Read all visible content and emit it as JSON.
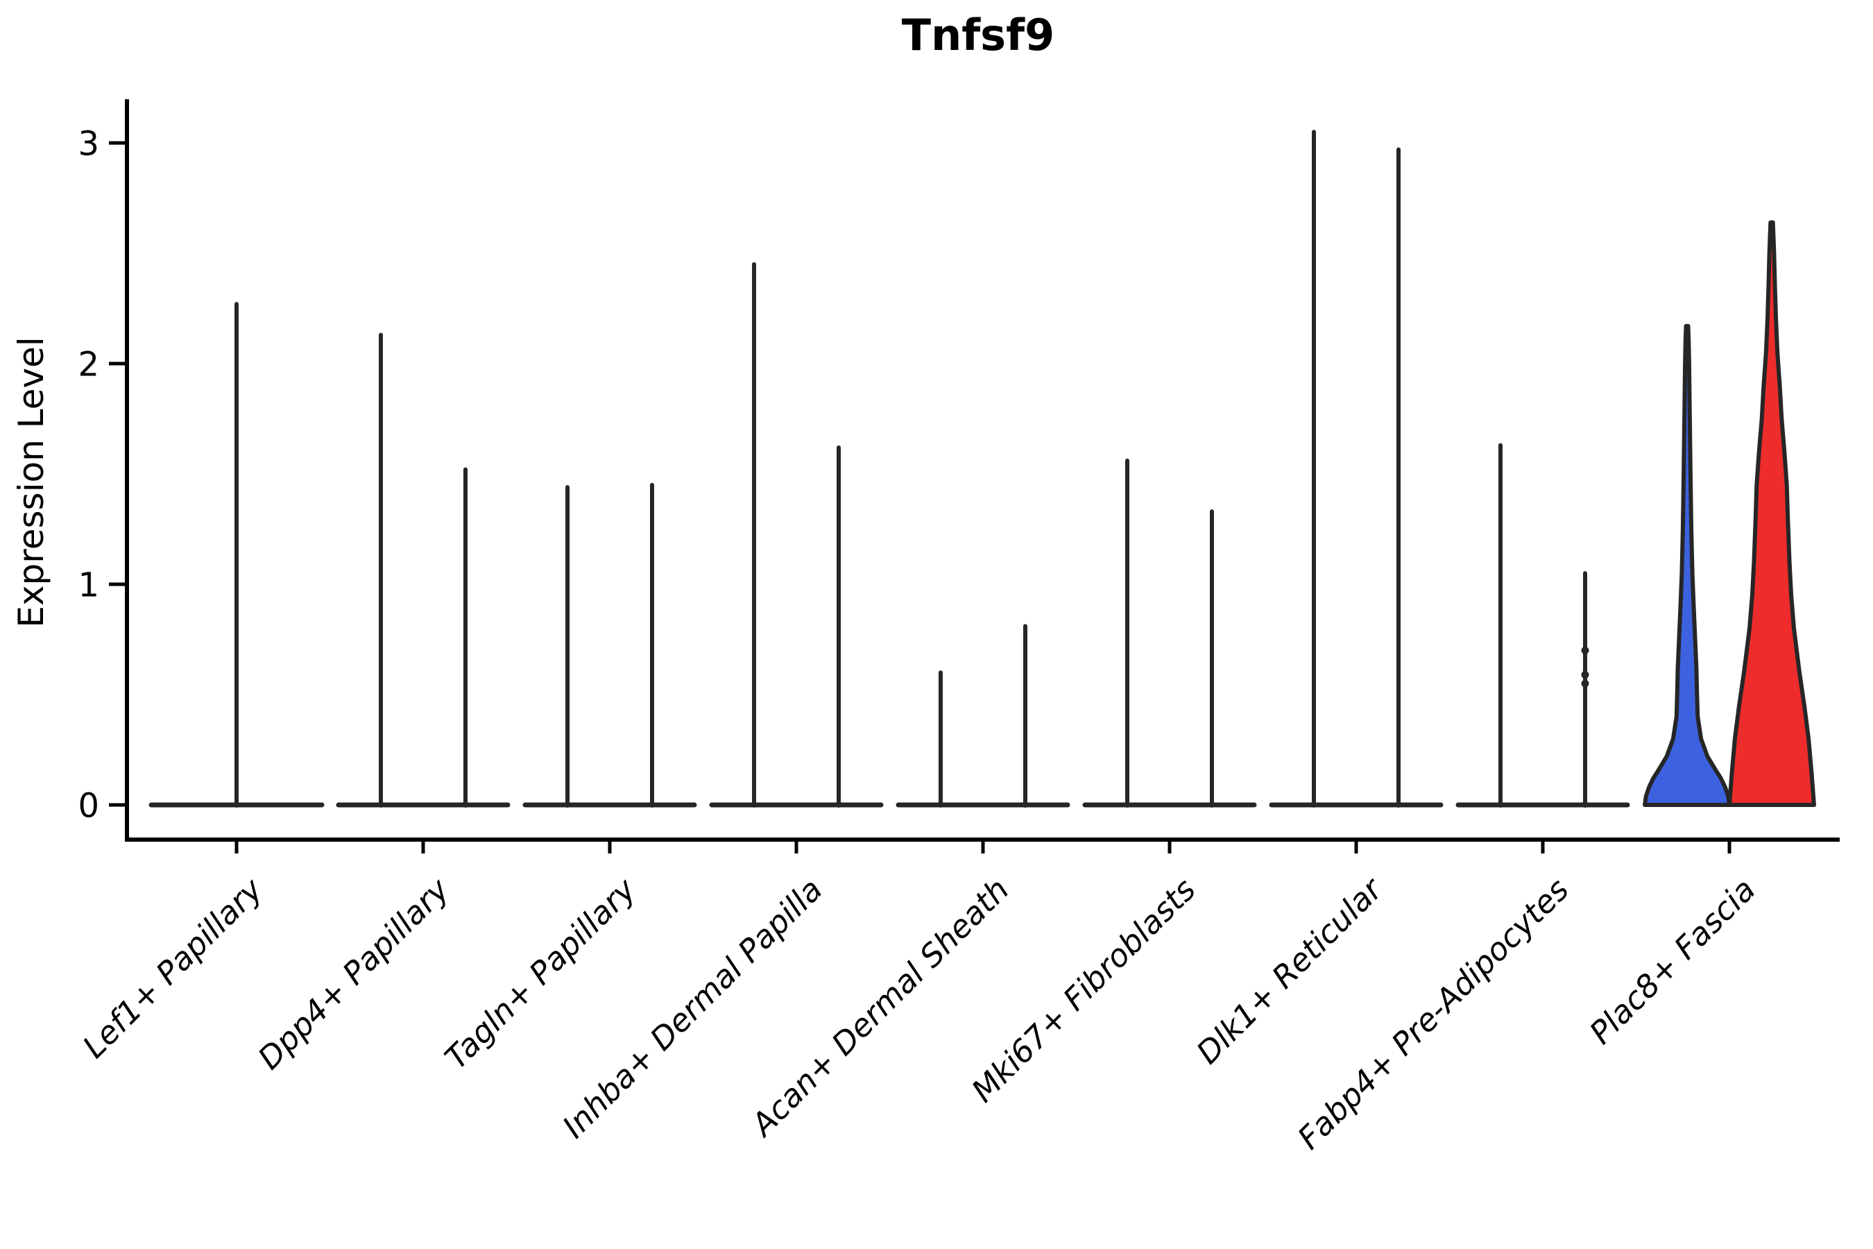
{
  "figure": {
    "background": "#ffffff"
  },
  "chart_data": {
    "type": "violin",
    "title": "Tnfsf9",
    "ylabel": "Expression Level",
    "xlabel": "",
    "yticks": [
      0,
      1,
      2,
      3
    ],
    "ylim": [
      0,
      3.2
    ],
    "grid": "off",
    "legend": "none",
    "x_tick_label_style": "italic, rotated 45deg",
    "categories": [
      "Lef1+ Papillary",
      "Dpp4+ Papillary",
      "Tagln+ Papillary",
      "Inhba+ Dermal Papilla",
      "Acan+ Dermal Sheath",
      "Mki67+ Fibroblasts",
      "Dlk1+ Reticular",
      "Fabp4+ Pre-Adipocytes",
      "Plac8+ Fascia"
    ],
    "colors": {
      "outline": "#262626",
      "axis": "#000000",
      "highlight_blue": "#3D62E0",
      "highlight_red": "#EE2C2C",
      "background": "#ffffff"
    },
    "violins": [
      {
        "category": "Lef1+ Papillary",
        "position": "center",
        "style": "spike",
        "fill": "none",
        "max_expression": 2.27
      },
      {
        "category": "Dpp4+ Papillary",
        "position": "left",
        "style": "spike",
        "fill": "none",
        "max_expression": 2.13
      },
      {
        "category": "Dpp4+ Papillary",
        "position": "right",
        "style": "spike",
        "fill": "none",
        "max_expression": 1.52
      },
      {
        "category": "Tagln+ Papillary",
        "position": "left",
        "style": "spike",
        "fill": "none",
        "max_expression": 1.44
      },
      {
        "category": "Tagln+ Papillary",
        "position": "right",
        "style": "spike",
        "fill": "none",
        "max_expression": 1.45
      },
      {
        "category": "Inhba+ Dermal Papilla",
        "position": "left",
        "style": "spike",
        "fill": "none",
        "max_expression": 2.45
      },
      {
        "category": "Inhba+ Dermal Papilla",
        "position": "right",
        "style": "spike",
        "fill": "none",
        "max_expression": 1.62
      },
      {
        "category": "Acan+ Dermal Sheath",
        "position": "left",
        "style": "spike",
        "fill": "none",
        "max_expression": 0.6
      },
      {
        "category": "Acan+ Dermal Sheath",
        "position": "right",
        "style": "spike",
        "fill": "none",
        "max_expression": 0.81
      },
      {
        "category": "Mki67+ Fibroblasts",
        "position": "left",
        "style": "spike",
        "fill": "none",
        "max_expression": 1.56
      },
      {
        "category": "Mki67+ Fibroblasts",
        "position": "right",
        "style": "spike",
        "fill": "none",
        "max_expression": 1.33
      },
      {
        "category": "Dlk1+ Reticular",
        "position": "left",
        "style": "spike",
        "fill": "none",
        "max_expression": 3.05
      },
      {
        "category": "Dlk1+ Reticular",
        "position": "right",
        "style": "spike",
        "fill": "none",
        "max_expression": 2.97
      },
      {
        "category": "Fabp4+ Pre-Adipocytes",
        "position": "left",
        "style": "spike",
        "fill": "none",
        "max_expression": 1.63
      },
      {
        "category": "Fabp4+ Pre-Adipocytes",
        "position": "right",
        "style": "spike",
        "fill": "none",
        "max_expression": 1.05,
        "points": [
          0.7,
          0.59,
          0.55
        ]
      },
      {
        "category": "Plac8+ Fascia",
        "position": "left",
        "style": "density",
        "fill": "#3D62E0",
        "max_expression": 2.17,
        "profile": [
          [
            0,
            1.0
          ],
          [
            0.04,
            0.97
          ],
          [
            0.08,
            0.9
          ],
          [
            0.12,
            0.8
          ],
          [
            0.15,
            0.7
          ],
          [
            0.22,
            0.48
          ],
          [
            0.3,
            0.33
          ],
          [
            0.4,
            0.25
          ],
          [
            0.5,
            0.235
          ],
          [
            0.62,
            0.22
          ],
          [
            0.75,
            0.19
          ],
          [
            0.9,
            0.155
          ],
          [
            1.05,
            0.125
          ],
          [
            1.25,
            0.1
          ],
          [
            1.5,
            0.08
          ],
          [
            1.8,
            0.06
          ],
          [
            2.0,
            0.048
          ],
          [
            2.1,
            0.038
          ],
          [
            2.17,
            0.025
          ]
        ]
      },
      {
        "category": "Plac8+ Fascia",
        "position": "right",
        "style": "density",
        "fill": "#EE2C2C",
        "max_expression": 2.64,
        "profile": [
          [
            0,
            1.0
          ],
          [
            0.15,
            0.94
          ],
          [
            0.3,
            0.87
          ],
          [
            0.45,
            0.77
          ],
          [
            0.6,
            0.655
          ],
          [
            0.8,
            0.525
          ],
          [
            0.95,
            0.46
          ],
          [
            1.1,
            0.42
          ],
          [
            1.3,
            0.38
          ],
          [
            1.45,
            0.355
          ],
          [
            1.6,
            0.3
          ],
          [
            1.75,
            0.235
          ],
          [
            1.9,
            0.19
          ],
          [
            2.05,
            0.135
          ],
          [
            2.2,
            0.1
          ],
          [
            2.35,
            0.075
          ],
          [
            2.5,
            0.055
          ],
          [
            2.64,
            0.028
          ]
        ]
      }
    ]
  }
}
